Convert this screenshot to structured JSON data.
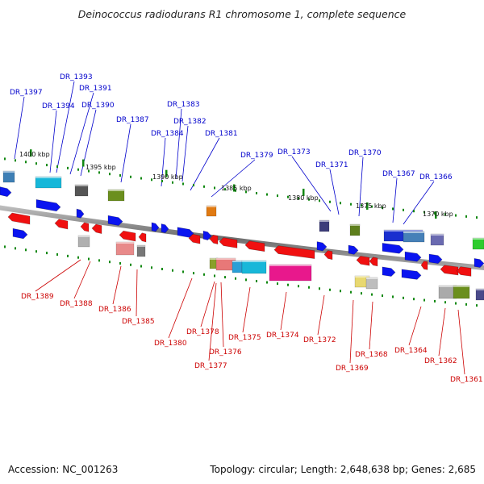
{
  "title": "Deinococcus radiodurans R1 chromosome 1, complete sequence",
  "footer": {
    "accession": "Accession: NC_001263",
    "topology": "Topology: circular; Length: 2,648,638 bp; Genes: 2,685"
  },
  "colors": {
    "forward_label": "#0000cc",
    "reverse_label": "#cc0000",
    "forward_arrow": "#0a14f0",
    "reverse_arrow": "#f01010",
    "tick": "#118811",
    "backbone": "#8c8c8c"
  },
  "ruler_labels": [
    "1400 kbp",
    "1395 kbp",
    "1390 kbp",
    "1385 kbp",
    "1380 kbp",
    "1375 kbp",
    "1370 kbp"
  ],
  "forward_genes": [
    "DR_1397",
    "DR_1393",
    "DR_1391",
    "DR_1394",
    "DR_1390",
    "DR_1387",
    "DR_1383",
    "DR_1382",
    "DR_1384",
    "DR_1381",
    "DR_1379",
    "DR_1373",
    "DR_1370",
    "DR_1371",
    "DR_1367",
    "DR_1366"
  ],
  "reverse_genes": [
    "DR_1389",
    "DR_1388",
    "DR_1386",
    "DR_1385",
    "DR_1380",
    "DR_1378",
    "DR_1376",
    "DR_1377",
    "DR_1375",
    "DR_1374",
    "DR_1372",
    "DR_1369",
    "DR_1368",
    "DR_1364",
    "DR_1362",
    "DR_1361"
  ]
}
